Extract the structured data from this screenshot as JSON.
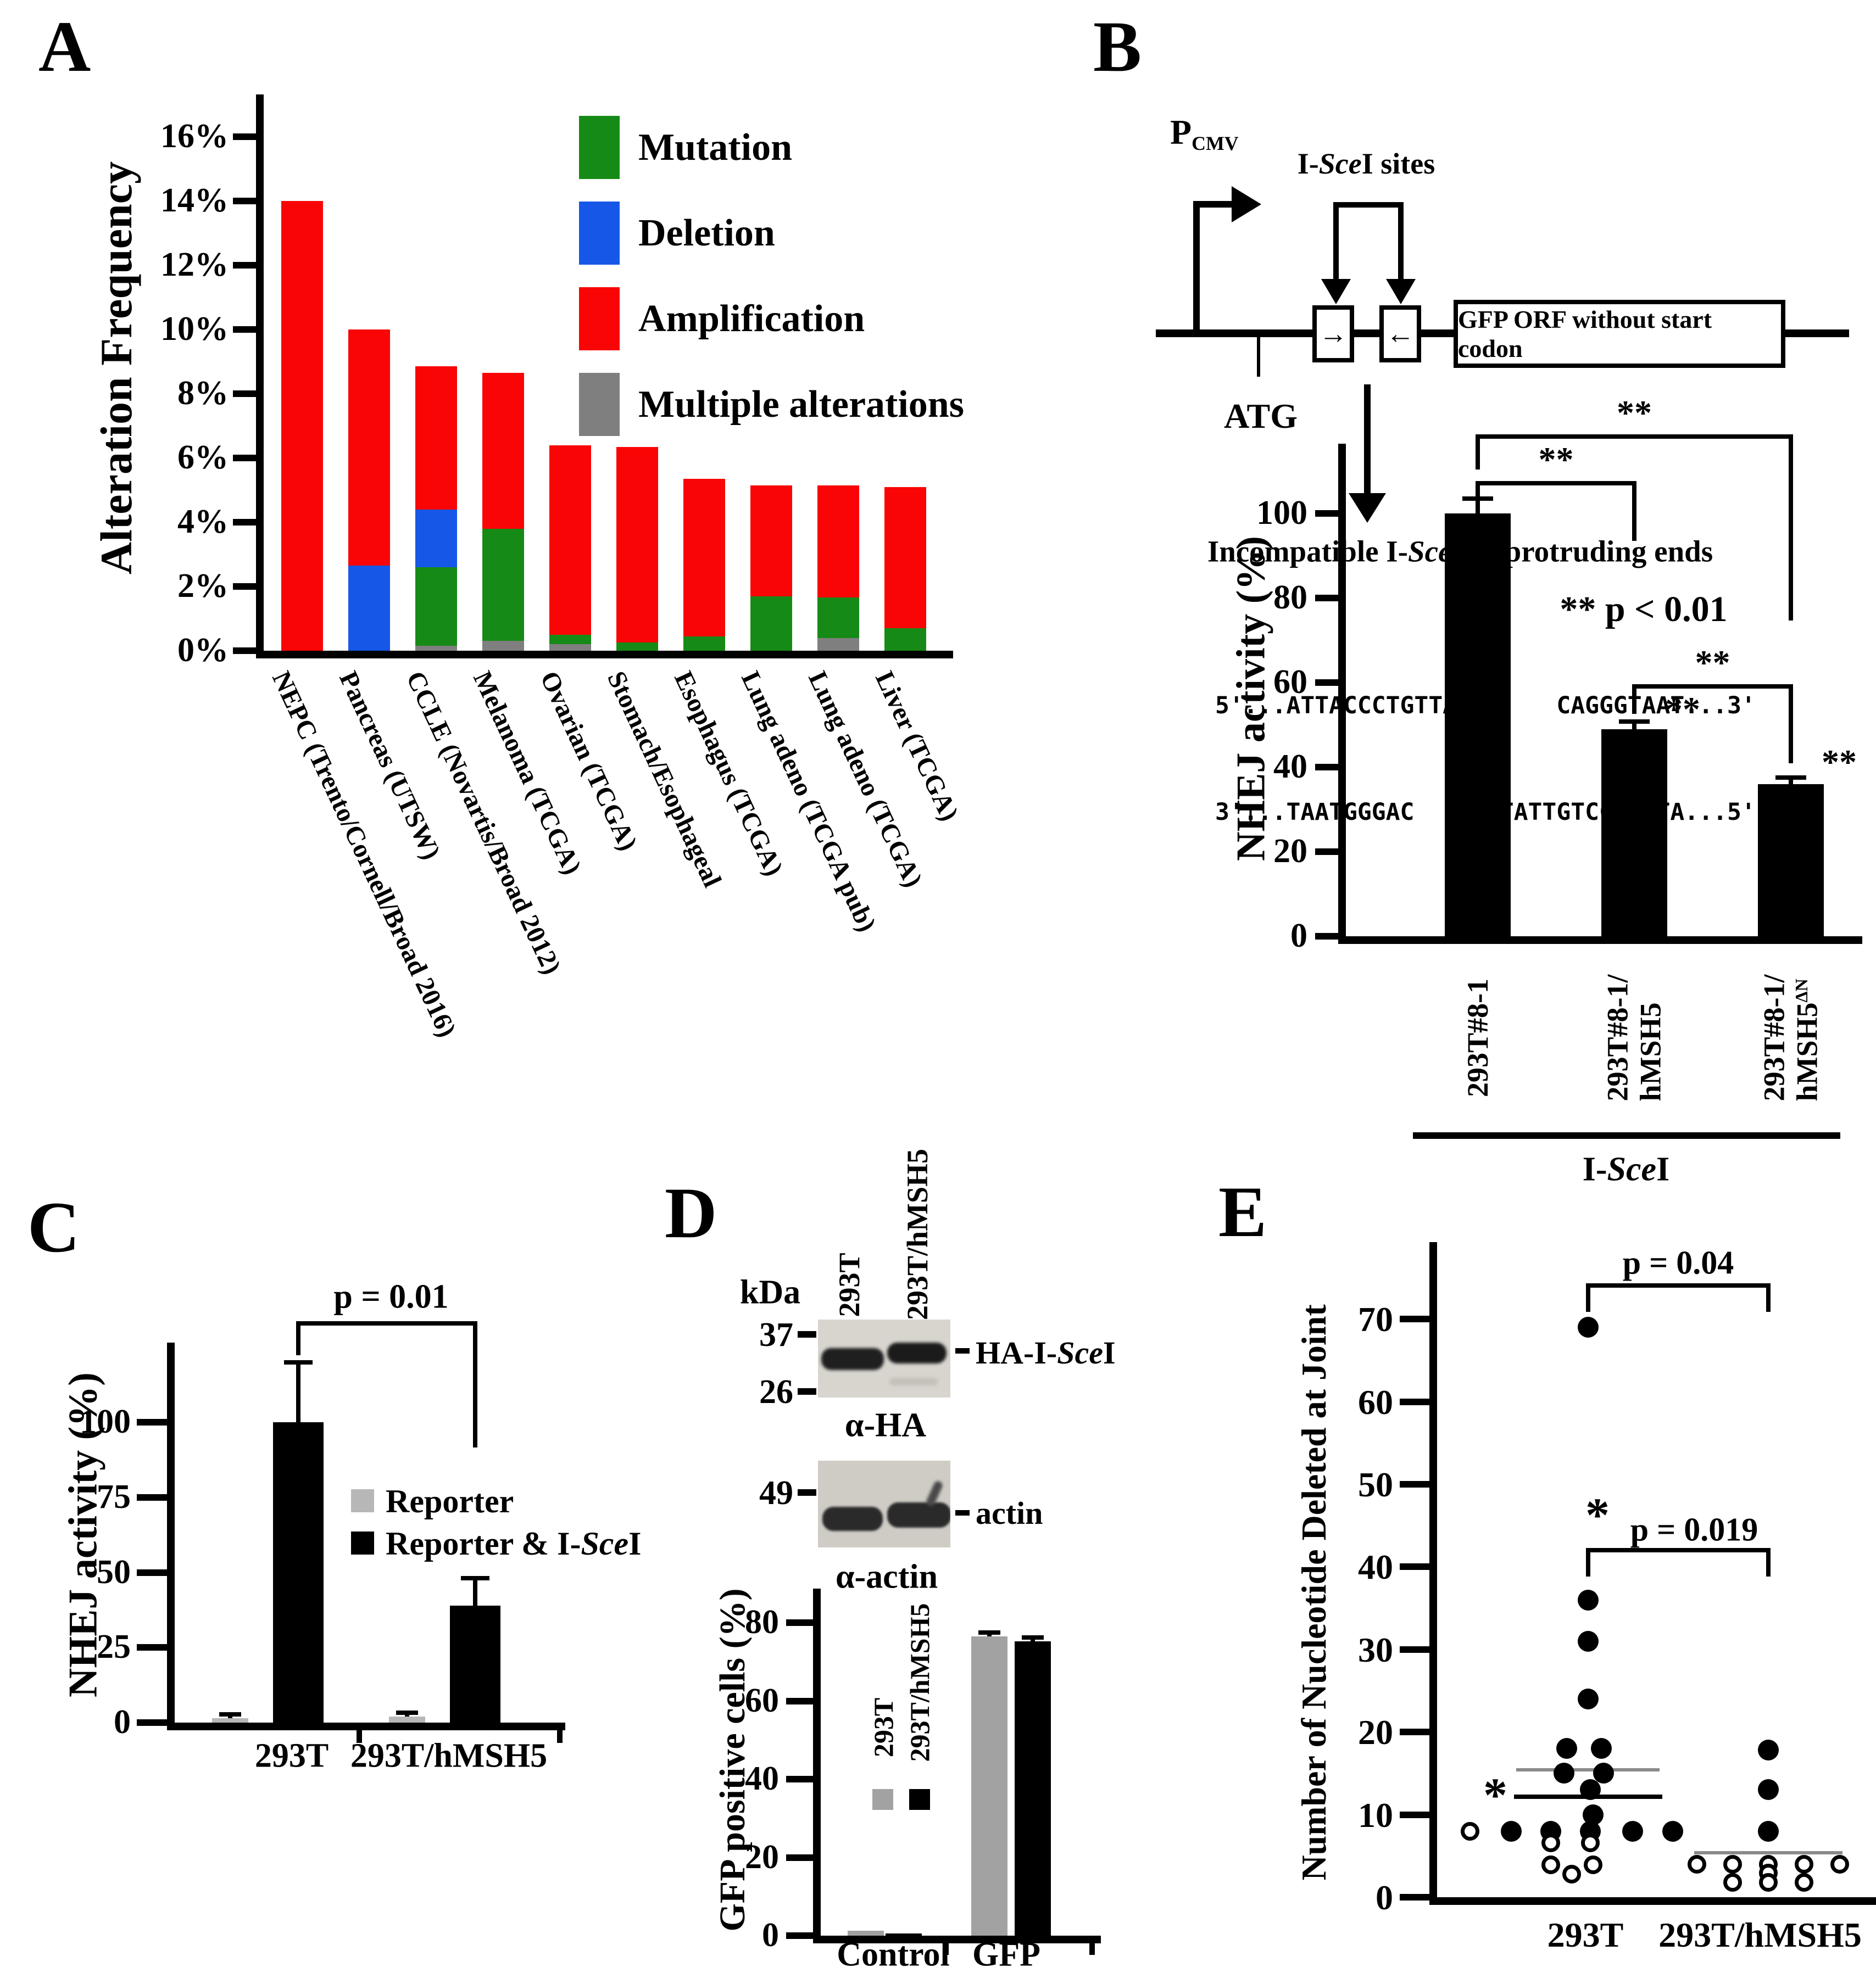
{
  "chart_data": [
    {
      "id": "A",
      "type": "bar",
      "stacked": true,
      "ylabel": "Alteration Frequency",
      "ylim": [
        0,
        16
      ],
      "ytick_values": [
        0,
        2,
        4,
        6,
        8,
        10,
        12,
        14,
        16
      ],
      "grid": false,
      "legend_position": "upper right",
      "categories": [
        "NEPC (Trento/Cornell/Broad 2016)",
        "Pancreas (UTSW)",
        "CCLE (Novartis/Broad 2012)",
        "Melanoma (TCGA)",
        "Ovarian (TCGA)",
        "Stomach/Esophageal",
        "Esophagus (TCGA)",
        "Lung adeno (TCGA pub)",
        "Lung adeno (TCGA)",
        "Liver (TCGA)"
      ],
      "series": [
        {
          "name": "Multiple alterations",
          "color": "#7f7f7f",
          "values": [
            0,
            0,
            0.15,
            0.3,
            0.2,
            0,
            0,
            0,
            0.4,
            0
          ]
        },
        {
          "name": "Mutation",
          "color": "#168a16",
          "values": [
            0,
            0,
            2.45,
            3.5,
            0.3,
            0.25,
            0.45,
            1.7,
            1.25,
            0.7
          ]
        },
        {
          "name": "Deletion",
          "color": "#1657e8",
          "values": [
            0,
            2.65,
            1.8,
            0,
            0,
            0,
            0,
            0,
            0,
            0
          ]
        },
        {
          "name": "Amplification",
          "color": "#f90505",
          "values": [
            14,
            7.35,
            4.45,
            4.85,
            5.9,
            6.1,
            4.9,
            3.45,
            3.5,
            4.4
          ]
        }
      ]
    },
    {
      "id": "B",
      "type": "bar",
      "ylabel": "NHEJ activity (%)",
      "ylim": [
        0,
        118
      ],
      "ytick_values": [
        0,
        20,
        40,
        60,
        80,
        100
      ],
      "bar_color": "#000000",
      "categories": [
        "293T#8-1",
        "293T#8-1/hMSH5",
        "293T#8-1/hMSH5ΔN"
      ],
      "values": [
        100,
        49,
        36
      ],
      "errors": [
        3.5,
        1.8,
        1.5
      ],
      "group_label": "I-SceI",
      "significance": {
        "note": "** p < 0.01",
        "brackets": [
          [
            0,
            2
          ],
          [
            0,
            1
          ],
          [
            1,
            2
          ]
        ],
        "bracket_label": "**",
        "bar_labels": [
          "",
          "**",
          "**"
        ]
      }
    },
    {
      "id": "C",
      "type": "bar",
      "ylabel": "NHEJ activity (%)",
      "ylim": [
        0,
        125
      ],
      "ytick_values": [
        0,
        25,
        50,
        75,
        100
      ],
      "categories": [
        "293T",
        "293T/hMSH5"
      ],
      "series": [
        {
          "name": "Reporter",
          "color": "#b7b7b7",
          "values": [
            1.5,
            2
          ],
          "errors": [
            1.2,
            1.2
          ]
        },
        {
          "name": "Reporter & I-SceI",
          "color": "#000000",
          "values": [
            100,
            39
          ],
          "errors": [
            20,
            9
          ]
        }
      ],
      "annotation": {
        "label": "p = 0.01",
        "between_series": "Reporter & I-SceI",
        "between_groups": [
          0,
          1
        ]
      }
    },
    {
      "id": "D",
      "type": "bar",
      "ylabel": "GFP positive cells (%)",
      "ylim": [
        0,
        88
      ],
      "ytick_values": [
        0,
        20,
        40,
        60,
        80
      ],
      "categories": [
        "Control",
        "GFP"
      ],
      "series": [
        {
          "name": "293T",
          "color": "#a2a2a2",
          "values": [
            1.3,
            76.5
          ],
          "errors": [
            0,
            1
          ]
        },
        {
          "name": "293T/hMSH5",
          "color": "#000000",
          "values": [
            0.5,
            75.2
          ],
          "errors": [
            0,
            1
          ]
        }
      ]
    },
    {
      "id": "E",
      "type": "scatter",
      "ylabel": "Number of Nucleotide Deleted at Joint",
      "ylim": [
        0,
        78
      ],
      "ytick_values": [
        0,
        10,
        20,
        30,
        40,
        50,
        60,
        70
      ],
      "groups": [
        {
          "name": "293T",
          "filled_points": [
            69,
            36,
            31,
            24,
            18,
            18,
            15,
            15,
            13,
            10,
            8,
            8,
            8,
            8,
            8
          ],
          "open_points": [
            8,
            6.6,
            6.6,
            3.9,
            3.9,
            2.8
          ],
          "lines": [
            {
              "value": 15.4,
              "color": "#8a8a8a",
              "star": false
            },
            {
              "value": 12.2,
              "color": "#000000",
              "star": true
            }
          ]
        },
        {
          "name": "293T/hMSH5",
          "filled_points": [
            17.8,
            13,
            8
          ],
          "open_points": [
            4,
            4,
            4,
            4,
            4,
            2.9,
            1.8,
            1.8,
            1.8
          ],
          "lines": [
            {
              "value": 5.4,
              "color": "#8a8a8a",
              "star": false
            }
          ]
        }
      ],
      "annotations": [
        {
          "label": "p = 0.04",
          "star": ""
        },
        {
          "label": "p = 0.019",
          "star": "*"
        }
      ]
    }
  ],
  "panels": {
    "a": {
      "label": "A",
      "ylabel": "Alteration Frequency",
      "yticks": [
        "0%",
        "2%",
        "4%",
        "6%",
        "8%",
        "10%",
        "12%",
        "14%",
        "16%"
      ],
      "legend": [
        {
          "label": "Mutation",
          "color": "#168a16"
        },
        {
          "label": "Deletion",
          "color": "#1657e8"
        },
        {
          "label": "Amplification",
          "color": "#f90505"
        },
        {
          "label": "Multiple alterations",
          "color": "#7f7f7f"
        }
      ]
    },
    "b": {
      "label": "B",
      "promoter": {
        "p": "P",
        "sub": "CMV"
      },
      "scei_sites": {
        "pre": "I-",
        "it": "Sce",
        "post": "I sites"
      },
      "box_arrows": {
        "right": "→",
        "left": "←"
      },
      "gfp_box": "GFP ORF without start codon",
      "atg": "ATG",
      "incompatible": {
        "pre": "Incompatible I-",
        "it": "Sce",
        "post": "I 3'-protruding ends"
      },
      "seq_top": "5'...ATTACCCTGTTAT      CAGGGTAAT...3'",
      "seq_bottom": "3'...TAATGGGAC      TATTGTCCCATTA...5'",
      "ylabel": "NHEJ activity (%)",
      "yticks": [
        "0",
        "20",
        "40",
        "60",
        "80",
        "100"
      ],
      "xlabels": [
        {
          "line1": "293T#8-1",
          "line2": "",
          "sup": ""
        },
        {
          "line1": "293T#8-1/",
          "line2": "hMSH5",
          "sup": ""
        },
        {
          "line1": "293T#8-1/",
          "line2": "hMSH5",
          "sup": "ΔN"
        }
      ],
      "xgroup": {
        "pre": "I-",
        "it": "Sce",
        "post": "I"
      },
      "pnote": "** p < 0.01",
      "sig": "**"
    },
    "c": {
      "label": "C",
      "ylabel": "NHEJ activity (%)",
      "yticks": [
        "0",
        "25",
        "50",
        "75",
        "100"
      ],
      "pvalue": "p = 0.01",
      "legend": [
        {
          "pre": "Reporter",
          "it": "",
          "post": ""
        },
        {
          "pre": "Reporter & I-",
          "it": "Sce",
          "post": "I"
        }
      ],
      "xlabels": [
        "293T",
        "293T/hMSH5"
      ]
    },
    "d": {
      "label": "D",
      "kda": "kDa",
      "lanes": [
        "293T",
        "293T/hMSH5"
      ],
      "markers": {
        "m37": "37",
        "m26": "26",
        "m49": "49"
      },
      "band1": {
        "pre": "HA-I-",
        "it": "Sce",
        "post": "I"
      },
      "band2": "actin",
      "probe1": "α-HA",
      "probe2": "α-actin",
      "ylabel": "GFP positive cells (%)",
      "yticks": [
        "0",
        "20",
        "40",
        "60",
        "80"
      ],
      "legend": [
        "293T",
        "293T/hMSH5"
      ],
      "xlabels": [
        "Control",
        "GFP"
      ]
    },
    "e": {
      "label": "E",
      "ylabel": "Number of Nucleotide Deleted at Joint",
      "yticks": [
        "0",
        "10",
        "20",
        "30",
        "40",
        "50",
        "60",
        "70"
      ],
      "p1": "p = 0.04",
      "p2": "p = 0.019",
      "star": "*",
      "xlabels": [
        "293T",
        "293T/hMSH5"
      ]
    }
  }
}
